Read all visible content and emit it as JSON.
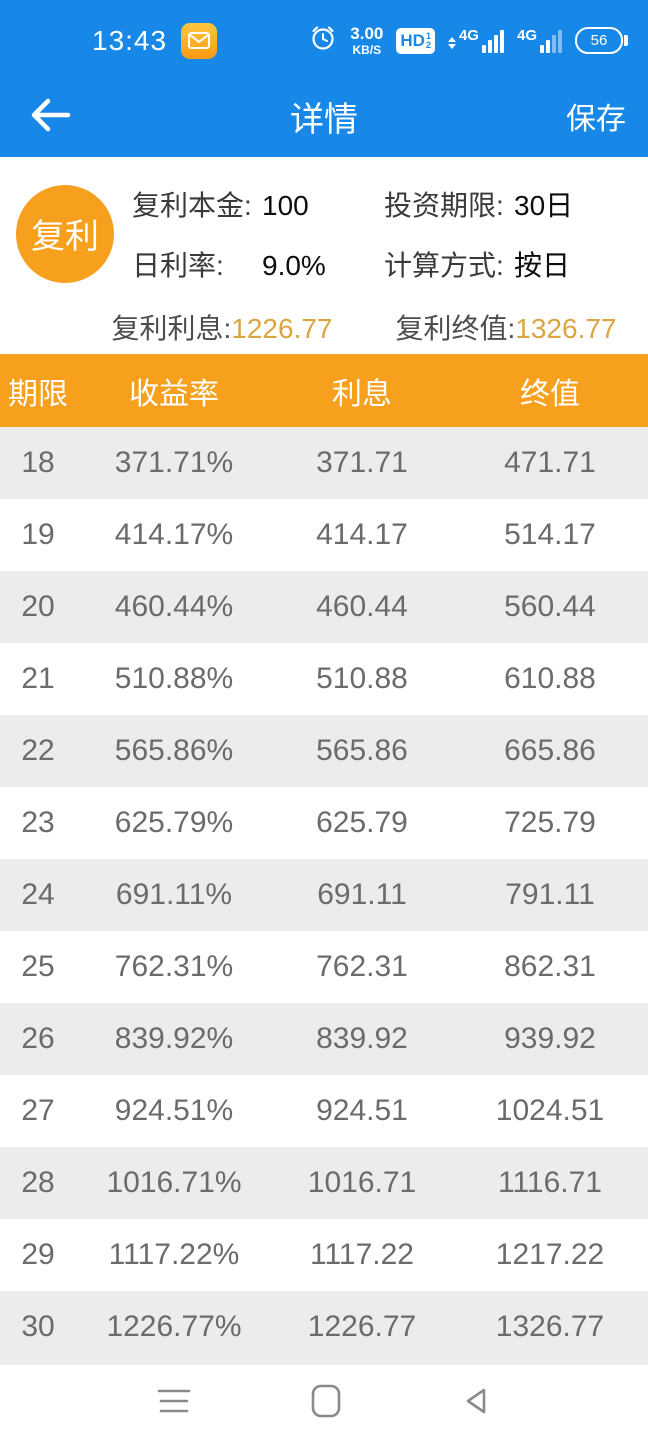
{
  "status_bar": {
    "time": "13:43",
    "speed_value": "3.00",
    "speed_unit": "KB/S",
    "hd_label": "HD",
    "hd_sim1": "1",
    "hd_sim2": "2",
    "sim1_label": "4G",
    "sim2_label": "4G",
    "battery_percent": "56"
  },
  "header": {
    "title": "详情",
    "save_label": "保存"
  },
  "summary_card": {
    "badge_label": "复利",
    "fields": [
      {
        "label": "复利本金:",
        "value": "100"
      },
      {
        "label": "投资期限:",
        "value": "30日"
      },
      {
        "label": "日利率:",
        "value": "9.0%"
      },
      {
        "label": "计算方式:",
        "value": "按日"
      }
    ],
    "interest_label": "复利利息:",
    "interest_value": "1226.77",
    "final_label": "复利终值:",
    "final_value": "1326.77"
  },
  "table": {
    "headers": [
      "期限",
      "收益率",
      "利息",
      "终值"
    ],
    "rows": [
      [
        "18",
        "371.71%",
        "371.71",
        "471.71"
      ],
      [
        "19",
        "414.17%",
        "414.17",
        "514.17"
      ],
      [
        "20",
        "460.44%",
        "460.44",
        "560.44"
      ],
      [
        "21",
        "510.88%",
        "510.88",
        "610.88"
      ],
      [
        "22",
        "565.86%",
        "565.86",
        "665.86"
      ],
      [
        "23",
        "625.79%",
        "625.79",
        "725.79"
      ],
      [
        "24",
        "691.11%",
        "691.11",
        "791.11"
      ],
      [
        "25",
        "762.31%",
        "762.31",
        "862.31"
      ],
      [
        "26",
        "839.92%",
        "839.92",
        "939.92"
      ],
      [
        "27",
        "924.51%",
        "924.51",
        "1024.51"
      ],
      [
        "28",
        "1016.71%",
        "1016.71",
        "1116.71"
      ],
      [
        "29",
        "1117.22%",
        "1117.22",
        "1217.22"
      ],
      [
        "30",
        "1226.77%",
        "1226.77",
        "1326.77"
      ]
    ]
  },
  "colors": {
    "accent_blue": "#1888e8",
    "accent_orange": "#f7a01e",
    "gold_value": "#dba541",
    "row_stripe": "#ececec",
    "row_text": "#6b6b6b",
    "nav_icon": "#8a8a8a"
  }
}
